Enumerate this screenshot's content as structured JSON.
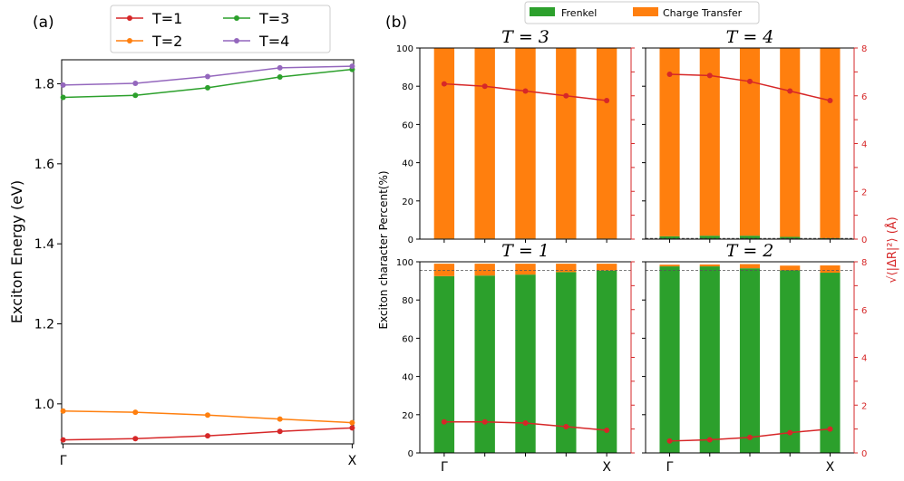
{
  "panel_labels": {
    "a": "(a)",
    "b": "(b)"
  },
  "legend_b": {
    "frenkel": "Frenkel",
    "ct": "Charge Transfer"
  },
  "ylabel_b": "Exciton character Percent(%)",
  "ylabel_b_right": "√⟨|ΔR|²⟩ (Å)",
  "colors": {
    "T1": "#d62728",
    "T2": "#ff7f0e",
    "T3": "#2ca02c",
    "T4": "#9467bd",
    "frenkel": "#2ca02c",
    "ct": "#ff7f0e",
    "radius": "#d62728"
  },
  "chart_data": [
    {
      "id": "a",
      "type": "line",
      "xlabel": "",
      "ylabel": "Exciton Energy (eV)",
      "xticks": [
        "Γ",
        "X"
      ],
      "ylim": [
        0.9,
        1.86
      ],
      "yticks": [
        "1.0",
        "1.2",
        "1.4",
        "1.6",
        "1.8"
      ],
      "legend": "top",
      "x": [
        0,
        1,
        2,
        3,
        4
      ],
      "series": [
        {
          "name": "T=1",
          "color": "#d62728",
          "values": [
            0.91,
            0.913,
            0.92,
            0.931,
            0.94
          ]
        },
        {
          "name": "T=2",
          "color": "#ff7f0e",
          "values": [
            0.982,
            0.979,
            0.972,
            0.962,
            0.953
          ]
        },
        {
          "name": "T=3",
          "color": "#2ca02c",
          "values": [
            1.766,
            1.771,
            1.79,
            1.817,
            1.836
          ]
        },
        {
          "name": "T=4",
          "color": "#9467bd",
          "values": [
            1.797,
            1.801,
            1.818,
            1.84,
            1.844
          ]
        }
      ]
    },
    {
      "id": "T3",
      "type": "bar",
      "title": "T = 3",
      "stacked": true,
      "categories": [
        "",
        "",
        "",
        "",
        ""
      ],
      "frenkel": [
        0.3,
        0.3,
        0.3,
        0.3,
        0.3
      ],
      "charge_transfer": [
        99.7,
        99.7,
        99.7,
        99.7,
        99.7
      ],
      "ylim": [
        0,
        100
      ],
      "yticks": [
        "0",
        "20",
        "40",
        "60",
        "80",
        "100"
      ],
      "y2lim": [
        0,
        8
      ],
      "radius": [
        6.5,
        6.4,
        6.2,
        6.0,
        5.8
      ]
    },
    {
      "id": "T4",
      "type": "bar",
      "title": "T = 4",
      "stacked": true,
      "categories": [
        "",
        "",
        "",
        "",
        ""
      ],
      "frenkel": [
        1.5,
        1.8,
        1.8,
        1.2,
        0.5
      ],
      "charge_transfer": [
        98.5,
        98.2,
        98.2,
        98.8,
        99.5
      ],
      "ylim": [
        0,
        100
      ],
      "y2lim": [
        0,
        8
      ],
      "y2ticks": [
        "0",
        "2",
        "4",
        "6",
        "8"
      ],
      "hline": 0.4,
      "radius": [
        6.9,
        6.85,
        6.6,
        6.2,
        5.8
      ]
    },
    {
      "id": "T1",
      "type": "bar",
      "title": "T = 1",
      "stacked": true,
      "categories": [
        "Γ",
        "",
        "",
        "",
        "X"
      ],
      "frenkel": [
        92.5,
        92.8,
        93.3,
        94.6,
        95.4
      ],
      "charge_transfer": [
        6.5,
        6.2,
        5.7,
        4.4,
        3.6
      ],
      "ylim": [
        0,
        100
      ],
      "yticks": [
        "0",
        "20",
        "40",
        "60",
        "80",
        "100"
      ],
      "y2lim": [
        0,
        8
      ],
      "hline": 95.5,
      "radius": [
        1.3,
        1.3,
        1.25,
        1.1,
        0.95
      ]
    },
    {
      "id": "T2",
      "type": "bar",
      "title": "T = 2",
      "stacked": true,
      "categories": [
        "Γ",
        "",
        "",
        "",
        "X"
      ],
      "frenkel": [
        97.6,
        97.6,
        96.6,
        95.5,
        94.3
      ],
      "charge_transfer": [
        0.9,
        1.0,
        2.2,
        2.5,
        3.8
      ],
      "ylim": [
        0,
        100
      ],
      "y2lim": [
        0,
        8
      ],
      "y2ticks": [
        "0",
        "2",
        "4",
        "6",
        "8"
      ],
      "hline": 95.5,
      "radius": [
        0.5,
        0.55,
        0.65,
        0.85,
        1.0
      ]
    }
  ]
}
